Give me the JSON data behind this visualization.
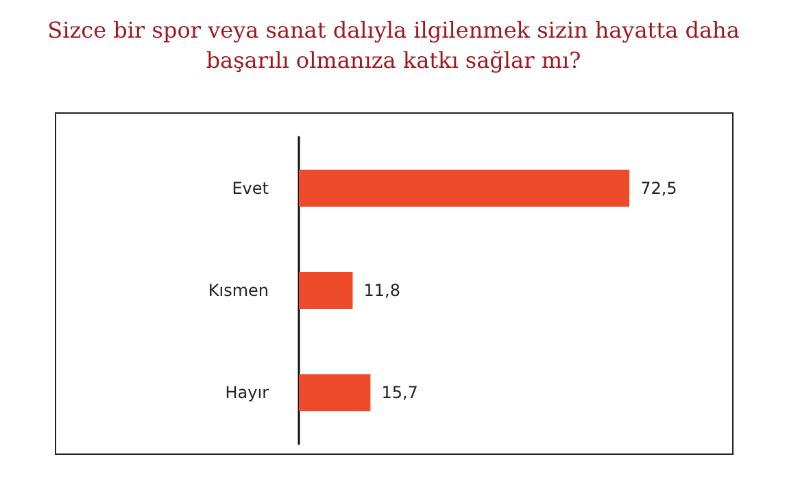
{
  "chart_data": {
    "type": "bar",
    "orientation": "horizontal",
    "title": "Sizce bir spor veya sanat dalıyla ilgilenmek sizin hayatta daha\nbaşarılı olmanıza katkı sağlar mı?",
    "categories": [
      "Evet",
      "Kısmen",
      "Hayır"
    ],
    "values": [
      72.5,
      11.8,
      15.7
    ],
    "value_labels": [
      "72,5",
      "11,8",
      "15,7"
    ],
    "color": "#ee4b2b"
  }
}
